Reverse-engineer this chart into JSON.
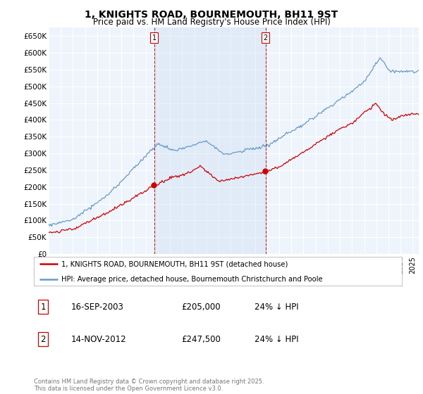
{
  "title": "1, KNIGHTS ROAD, BOURNEMOUTH, BH11 9ST",
  "subtitle": "Price paid vs. HM Land Registry's House Price Index (HPI)",
  "ylabel_ticks": [
    "£0",
    "£50K",
    "£100K",
    "£150K",
    "£200K",
    "£250K",
    "£300K",
    "£350K",
    "£400K",
    "£450K",
    "£500K",
    "£550K",
    "£600K",
    "£650K"
  ],
  "ylim": [
    0,
    675000
  ],
  "xlim_start": 1995.0,
  "xlim_end": 2025.5,
  "purchase1_date": 2003.71,
  "purchase1_price": 205000,
  "purchase1_label": "1",
  "purchase2_date": 2012.87,
  "purchase2_price": 247500,
  "purchase2_label": "2",
  "legend_line1": "1, KNIGHTS ROAD, BOURNEMOUTH, BH11 9ST (detached house)",
  "legend_line2": "HPI: Average price, detached house, Bournemouth Christchurch and Poole",
  "table_row1": [
    "1",
    "16-SEP-2003",
    "£205,000",
    "24% ↓ HPI"
  ],
  "table_row2": [
    "2",
    "14-NOV-2012",
    "£247,500",
    "24% ↓ HPI"
  ],
  "footnote": "Contains HM Land Registry data © Crown copyright and database right 2025.\nThis data is licensed under the Open Government Licence v3.0.",
  "hpi_color": "#6699cc",
  "price_color": "#cc0000",
  "vline_color": "#cc0000",
  "shade_color": "#ddeeff",
  "background_plot": "#eef4fb",
  "background_fig": "#ffffff",
  "grid_color": "#ffffff"
}
